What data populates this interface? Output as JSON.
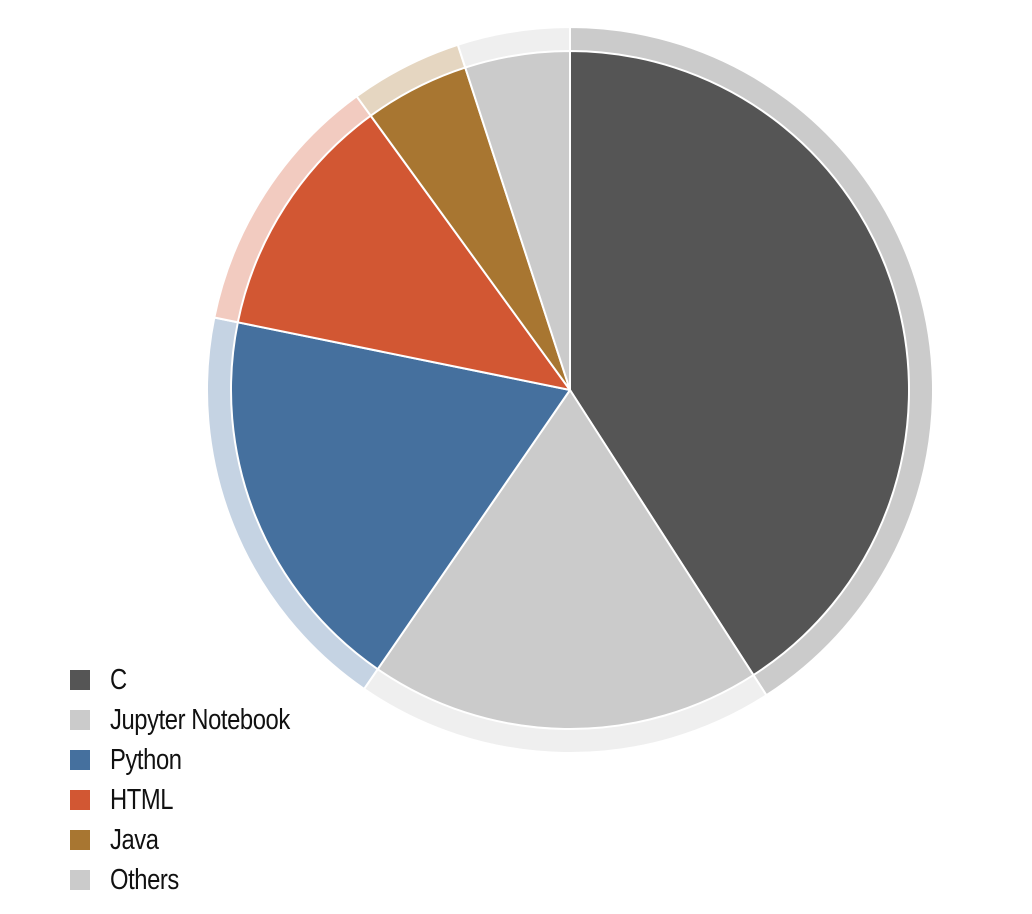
{
  "chart_data": {
    "type": "pie",
    "unit": "%",
    "legend_position": "bottom-left",
    "start_angle_deg": 0,
    "direction": "clockwise",
    "outer_ring": true,
    "series": [
      {
        "name": "C",
        "value": 40.9,
        "color": "#555555",
        "ring_color": "#cbcbcb"
      },
      {
        "name": "Jupyter Notebook",
        "value": 18.7,
        "color": "#cbcbcb",
        "ring_color": "#efefef"
      },
      {
        "name": "Python",
        "value": 18.6,
        "color": "#45709e",
        "ring_color": "#c5d3e3"
      },
      {
        "name": "HTML",
        "value": 11.8,
        "color": "#d25733",
        "ring_color": "#f2cbc0"
      },
      {
        "name": "Java",
        "value": 5.0,
        "color": "#a87631",
        "ring_color": "#e5d6c1"
      },
      {
        "name": "Others",
        "value": 5.0,
        "color": "#cbcbcb",
        "ring_color": "#efefef"
      }
    ]
  }
}
